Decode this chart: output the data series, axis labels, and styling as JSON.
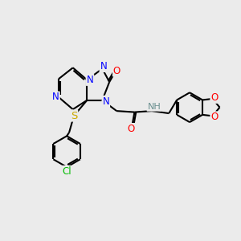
{
  "bg_color": "#ebebeb",
  "atom_colors": {
    "N": "#0000ff",
    "O": "#ff0000",
    "S": "#ccaa00",
    "Cl": "#00bb00",
    "H": "#6a9090",
    "C": "#000000"
  },
  "bond_lw": 1.5,
  "font_size": 8.5,
  "fig_size": [
    3.0,
    3.0
  ],
  "dpi": 100,
  "xlim": [
    0,
    10
  ],
  "ylim": [
    0,
    10
  ]
}
